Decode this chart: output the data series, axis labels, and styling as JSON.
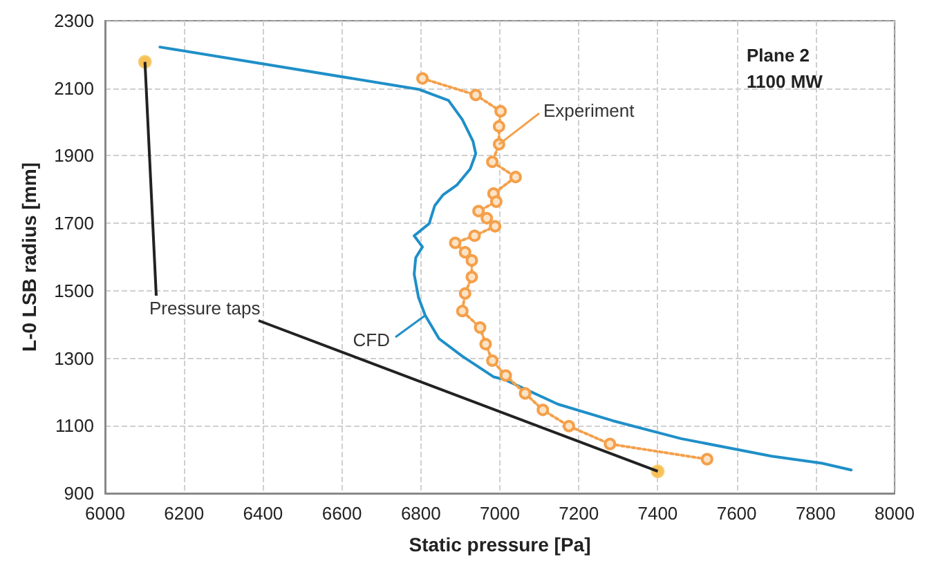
{
  "chart_data": {
    "type": "line",
    "xlabel": "Static pressure [Pa]",
    "ylabel": "L-0 LSB radius [mm]",
    "xlim": [
      6000,
      8000
    ],
    "xticks": [
      6000,
      6200,
      6400,
      6600,
      6800,
      7000,
      7200,
      7400,
      7600,
      7800,
      8000
    ],
    "ylim": [
      900,
      2300
    ],
    "yticks": [
      900,
      1100,
      1300,
      1500,
      1700,
      1900,
      2100,
      2300
    ],
    "grid": true,
    "legend": false,
    "annotations": [
      "Plane 2",
      "1100 MW"
    ],
    "series": [
      {
        "name": "CFD",
        "color": "#1f8fc8",
        "marker": "none",
        "line_style": "solid",
        "x": [
          6139,
          6794,
          6870,
          6905,
          6932,
          6939,
          6925,
          6891,
          6856,
          6835,
          6821,
          6783,
          6804,
          6787,
          6783,
          6794,
          6811,
          6846,
          6905,
          6984,
          7012,
          7147,
          7286,
          7459,
          7688,
          7816,
          7890
        ],
        "values": [
          2222,
          2097,
          2064,
          2007,
          1943,
          1906,
          1861,
          1813,
          1784,
          1752,
          1699,
          1663,
          1630,
          1598,
          1549,
          1480,
          1427,
          1358,
          1306,
          1245,
          1237,
          1164,
          1115,
          1062,
          1010,
          989,
          969
        ]
      },
      {
        "name": "Experiment",
        "color": "#f4a04a",
        "marker": "circle",
        "line_style": "dotted",
        "x": [
          6804,
          6939,
          7002,
          6998,
          6998,
          6981,
          7040,
          6984,
          6991,
          6946,
          6967,
          6988,
          6936,
          6887,
          6912,
          6929,
          6929,
          6912,
          6905,
          6950,
          6964,
          6981,
          7015,
          7064,
          7109,
          7175,
          7279,
          7525
        ],
        "values": [
          2129,
          2080,
          2032,
          1987,
          1934,
          1882,
          1837,
          1788,
          1764,
          1736,
          1715,
          1691,
          1663,
          1642,
          1614,
          1590,
          1541,
          1492,
          1440,
          1391,
          1342,
          1293,
          1249,
          1196,
          1147,
          1099,
          1046,
          1001
        ]
      },
      {
        "name": "Pressure taps",
        "type": "scatter",
        "color": "#f5b12e",
        "marker": "circle",
        "x": [
          6101,
          7400
        ],
        "values": [
          2178,
          965
        ]
      }
    ]
  }
}
